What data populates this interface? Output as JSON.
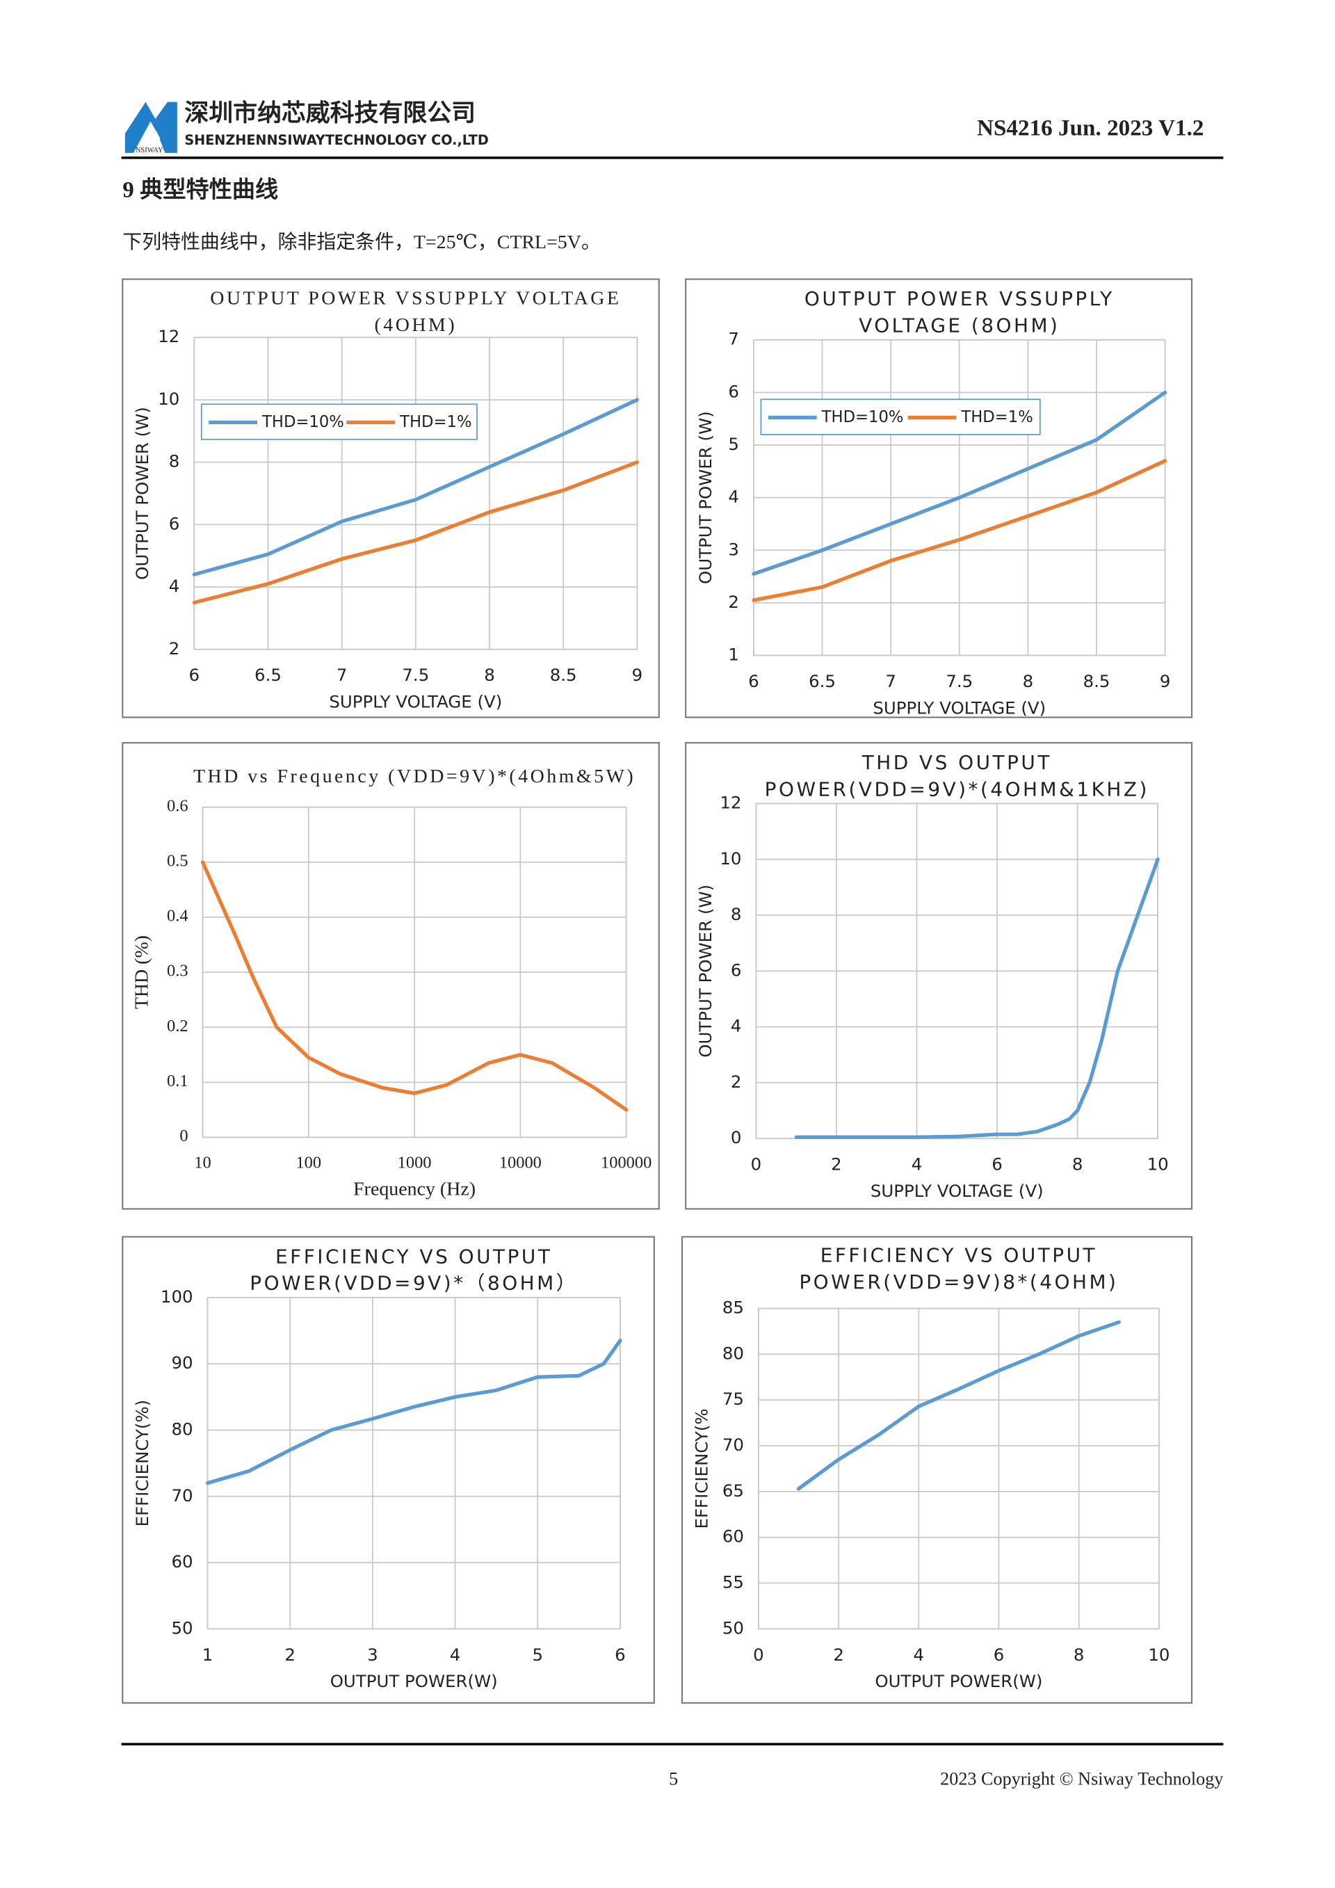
{
  "header": {
    "company_cn": "深圳市纳芯威科技有限公司",
    "company_en": "SHENZHENNSIWAYTECHNOLOGY CO.,LTD",
    "logo_text": "NSIWAY",
    "doc_id": "NS4216 Jun. 2023 V1.2"
  },
  "section": {
    "title": "9 典型特性曲线",
    "intro": "下列特性曲线中，除非指定条件，T=25℃，CTRL=5V。"
  },
  "chart_data": [
    {
      "type": "line",
      "title": [
        "OUTPUT POWER VSSUPPLY VOLTAGE",
        "(4OHM)"
      ],
      "x_label": "SUPPLY VOLTAGE (V)",
      "y_label": "OUTPUT POWER (W)",
      "x": [
        6,
        6.5,
        7,
        7.5,
        8,
        8.5,
        9
      ],
      "xlim": [
        6,
        9
      ],
      "xticks": [
        6,
        6.5,
        7,
        7.5,
        8,
        8.5,
        9
      ],
      "ylim": [
        2,
        12
      ],
      "yticks": [
        2,
        4,
        6,
        8,
        10,
        12
      ],
      "grid": true,
      "legend": "upper left",
      "series": [
        {
          "name": "THD=10%",
          "color": "#5b9bd5",
          "values": [
            4.4,
            5.05,
            6.1,
            6.8,
            7.85,
            8.9,
            10.0
          ]
        },
        {
          "name": "THD=1%",
          "color": "#ed7d31",
          "values": [
            3.5,
            4.1,
            4.9,
            5.5,
            6.4,
            7.1,
            8.0
          ]
        }
      ]
    },
    {
      "type": "line",
      "title": [
        "OUTPUT POWER VSSUPPLY",
        "VOLTAGE (8OHM)"
      ],
      "x_label": "SUPPLY VOLTAGE (V)",
      "y_label": "OUTPUT POWER (W)",
      "x": [
        6,
        6.5,
        7,
        7.5,
        8,
        8.5,
        9
      ],
      "xlim": [
        6,
        9
      ],
      "xticks": [
        6,
        6.5,
        7,
        7.5,
        8,
        8.5,
        9
      ],
      "ylim": [
        1,
        7
      ],
      "yticks": [
        1,
        2,
        3,
        4,
        5,
        6,
        7
      ],
      "grid": true,
      "legend": "upper left",
      "series": [
        {
          "name": "THD=10%",
          "color": "#5b9bd5",
          "values": [
            2.55,
            3.0,
            3.5,
            4.0,
            4.55,
            5.1,
            6.0
          ]
        },
        {
          "name": "THD=1%",
          "color": "#ed7d31",
          "values": [
            2.05,
            2.3,
            2.8,
            3.2,
            3.65,
            4.1,
            4.7
          ]
        }
      ]
    },
    {
      "type": "line",
      "title": [
        "THD vs Frequency (VDD=9V)*(4Ohm&5W)"
      ],
      "x_label": "Frequency (Hz)",
      "y_label": "THD (%)",
      "xscale": "log",
      "x": [
        10,
        20,
        30,
        50,
        100,
        200,
        500,
        1000,
        2000,
        5000,
        10000,
        20000,
        50000,
        100000
      ],
      "xlim": [
        10,
        100000
      ],
      "xticks": [
        10,
        100,
        1000,
        10000,
        100000
      ],
      "ylim": [
        0,
        0.6
      ],
      "yticks": [
        0,
        0.1,
        0.2,
        0.3,
        0.4,
        0.5,
        0.6
      ],
      "grid": true,
      "series": [
        {
          "color": "#ed7d31",
          "values": [
            0.5,
            0.37,
            0.29,
            0.2,
            0.145,
            0.115,
            0.09,
            0.08,
            0.095,
            0.135,
            0.15,
            0.135,
            0.09,
            0.05
          ]
        }
      ]
    },
    {
      "type": "line",
      "title": [
        "THD VS OUTPUT",
        "POWER(VDD=9V)*(4OHM&1KHZ)"
      ],
      "x_label": "SUPPLY VOLTAGE (V)",
      "y_label": "OUTPUT POWER (W)",
      "x": [
        1,
        2,
        3,
        4,
        5,
        6,
        6.5,
        7,
        7.5,
        7.8,
        8,
        8.3,
        8.6,
        9,
        9.5,
        10
      ],
      "xlim": [
        0,
        10
      ],
      "xticks": [
        0,
        2,
        4,
        6,
        8,
        10
      ],
      "ylim": [
        0,
        12
      ],
      "yticks": [
        0,
        2,
        4,
        6,
        8,
        10,
        12
      ],
      "grid": true,
      "series": [
        {
          "color": "#5b9bd5",
          "values": [
            0.05,
            0.05,
            0.05,
            0.05,
            0.07,
            0.15,
            0.15,
            0.25,
            0.5,
            0.7,
            1.0,
            2.0,
            3.5,
            6.0,
            8.0,
            10.0
          ]
        }
      ]
    },
    {
      "type": "line",
      "title": [
        "EFFICIENCY VS OUTPUT",
        "POWER(VDD=9V)*（8OHM）"
      ],
      "x_label": "OUTPUT POWER(W)",
      "y_label": "EFFICIENCY(%)",
      "x": [
        1,
        1.5,
        2,
        2.5,
        3,
        3.5,
        4,
        4.5,
        5,
        5.5,
        5.8,
        6
      ],
      "xlim": [
        1,
        6
      ],
      "xticks": [
        1,
        2,
        3,
        4,
        5,
        6
      ],
      "ylim": [
        50,
        100
      ],
      "yticks": [
        50,
        60,
        70,
        80,
        90,
        100
      ],
      "grid": true,
      "series": [
        {
          "color": "#5b9bd5",
          "values": [
            72,
            73.8,
            77,
            80,
            81.7,
            83.5,
            85,
            86,
            88,
            88.2,
            90,
            93.5
          ]
        }
      ]
    },
    {
      "type": "line",
      "title": [
        "EFFICIENCY VS OUTPUT",
        "POWER(VDD=9V)8*(4OHM)"
      ],
      "x_label": "OUTPUT POWER(W)",
      "y_label": "EFFICIENCY(%",
      "x": [
        1,
        2,
        3,
        4,
        5,
        6,
        7,
        8,
        9
      ],
      "xlim": [
        0,
        10
      ],
      "xticks": [
        0,
        2,
        4,
        6,
        8,
        10
      ],
      "ylim": [
        50,
        85
      ],
      "yticks": [
        50,
        55,
        60,
        65,
        70,
        75,
        80,
        85
      ],
      "grid": true,
      "series": [
        {
          "color": "#5b9bd5",
          "values": [
            65.3,
            68.5,
            71.2,
            74.3,
            76.2,
            78.2,
            80,
            82,
            83.5
          ]
        }
      ]
    }
  ],
  "footer": {
    "page": "5",
    "copyright": "2023 Copyright © Nsiway Technology"
  }
}
